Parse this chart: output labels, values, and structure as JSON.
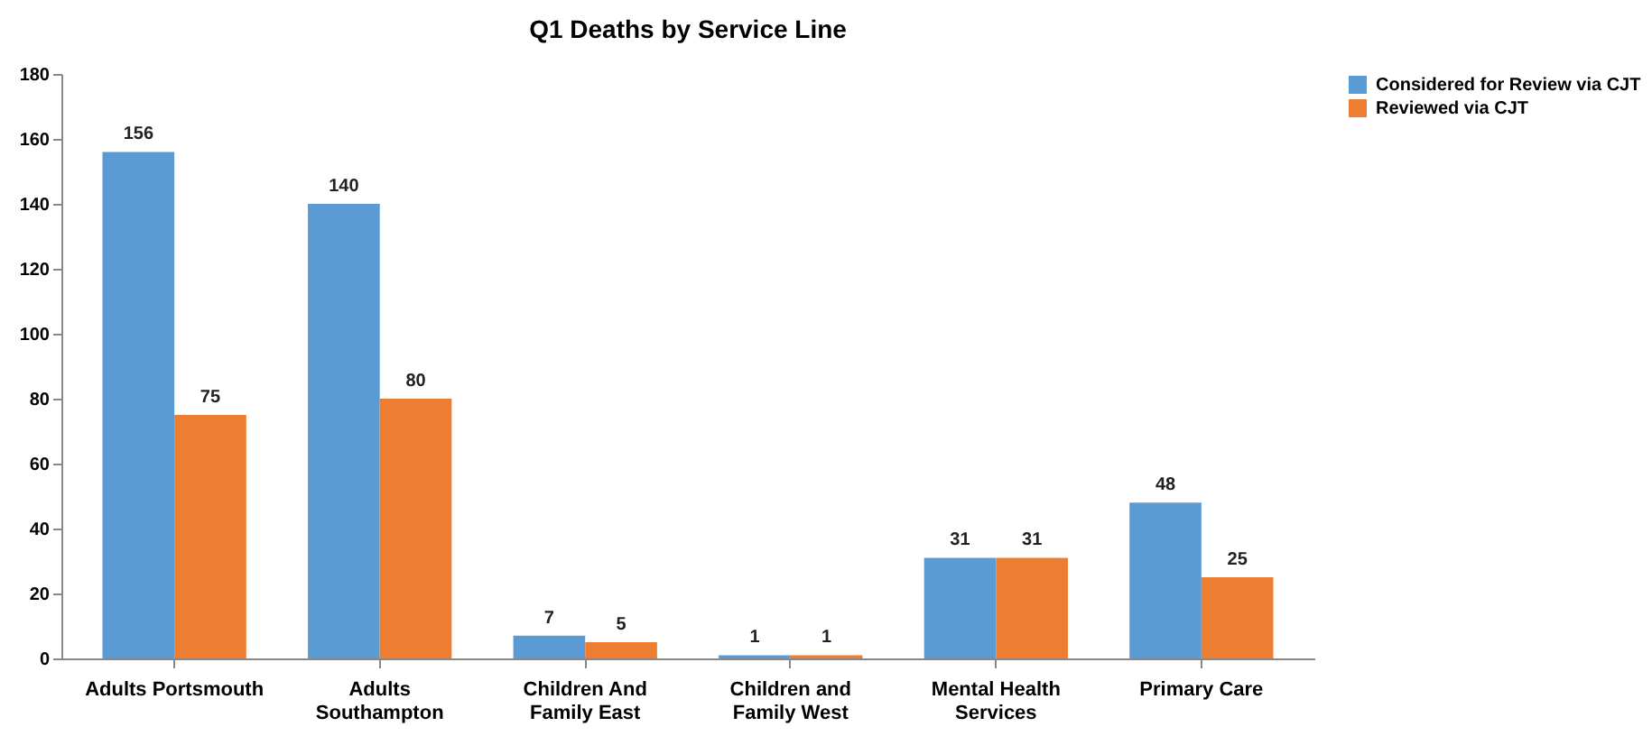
{
  "chart_data": {
    "type": "bar",
    "title": "Q1 Deaths by Service Line",
    "categories": [
      "Adults Portsmouth",
      "Adults Southampton",
      "Children And Family East",
      "Children and Family West",
      "Mental Health Services",
      "Primary Care"
    ],
    "series": [
      {
        "name": "Considered for Review via CJT",
        "color": "#5b9bd5",
        "values": [
          156,
          140,
          7,
          1,
          31,
          48
        ]
      },
      {
        "name": "Reviewed via CJT",
        "color": "#ed7d31",
        "values": [
          75,
          80,
          5,
          1,
          31,
          25
        ]
      }
    ],
    "ylim": [
      0,
      180
    ],
    "yticks": [
      0,
      20,
      40,
      60,
      80,
      100,
      120,
      140,
      160,
      180
    ],
    "grid": false,
    "legend": "right",
    "data_labels": true
  }
}
